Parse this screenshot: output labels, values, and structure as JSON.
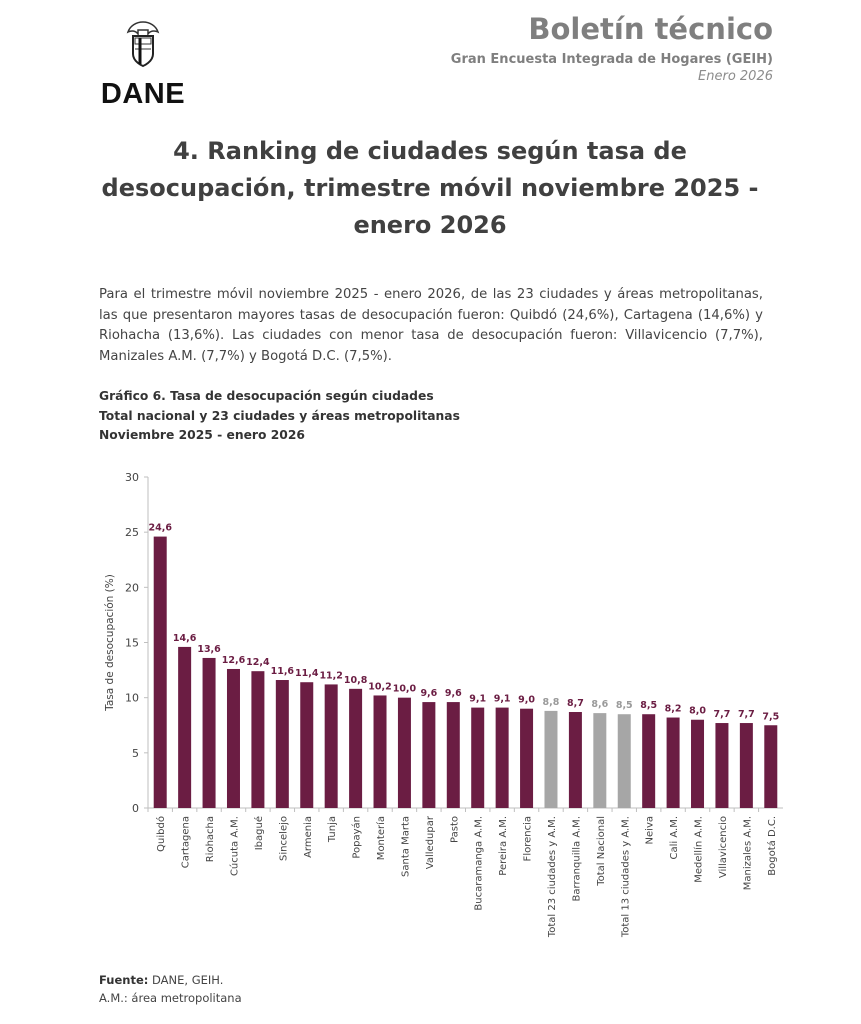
{
  "header": {
    "logo_text": "DANE",
    "title": "Boletín técnico",
    "subtitle": "Gran Encuesta Integrada de Hogares (GEIH)",
    "date": "Enero 2026"
  },
  "section_title": "4. Ranking de ciudades según tasa de desocupación, trimestre móvil noviembre 2025 - enero 2026",
  "paragraph": "Para el trimestre móvil noviembre 2025 - enero 2026, de las 23 ciudades y áreas metropolitanas, las que presentaron mayores tasas de desocupación fueron: Quibdó (24,6%), Cartagena (14,6%) y Riohacha (13,6%). Las ciudades con menor tasa de desocupación fueron: Villavicencio (7,7%), Manizales A.M. (7,7%) y Bogotá D.C. (7,5%).",
  "chart_caption": {
    "line1": "Gráfico 6. Tasa de desocupación según ciudades",
    "line2": "Total nacional y 23 ciudades y áreas metropolitanas",
    "line3": "Noviembre 2025 - enero 2026"
  },
  "chart_data": {
    "type": "bar",
    "title": "Gráfico 6. Tasa de desocupación según ciudades",
    "xlabel": "",
    "ylabel": "Tasa de desocupación (%)",
    "ylim": [
      0,
      30
    ],
    "yticks": [
      "0",
      "5",
      "10",
      "15",
      "20",
      "25",
      "30"
    ],
    "grid": false,
    "categories": [
      "Quibdó",
      "Cartagena",
      "Riohacha",
      "Cúcuta A.M.",
      "Ibagué",
      "Sincelejo",
      "Armenia",
      "Tunja",
      "Popayán",
      "Montería",
      "Santa Marta",
      "Valledupar",
      "Pasto",
      "Bucaramanga A.M.",
      "Pereira A.M.",
      "Florencia",
      "Total 23 ciudades y A.M.",
      "Barranquilla A.M.",
      "Total Nacional",
      "Total 13 ciudades y A.M.",
      "Neiva",
      "Cali A.M.",
      "Medellín A.M.",
      "Villavicencio",
      "Manizales A.M.",
      "Bogotá D.C."
    ],
    "values": [
      24.6,
      14.6,
      13.6,
      12.6,
      12.4,
      11.6,
      11.4,
      11.2,
      10.8,
      10.2,
      10.0,
      9.6,
      9.6,
      9.1,
      9.1,
      9.0,
      8.8,
      8.7,
      8.6,
      8.5,
      8.5,
      8.2,
      8.0,
      7.7,
      7.7,
      7.5
    ],
    "labels": [
      "24,6",
      "14,6",
      "13,6",
      "12,6",
      "12,4",
      "11,6",
      "11,4",
      "11,2",
      "10,8",
      "10,2",
      "10,0",
      "9,6",
      "9,6",
      "9,1",
      "9,1",
      "9,0",
      "8,8",
      "8,7",
      "8,6",
      "8,5",
      "8,5",
      "8,2",
      "8,0",
      "7,7",
      "7,7",
      "7,5"
    ],
    "highlight": [
      false,
      false,
      false,
      false,
      false,
      false,
      false,
      false,
      false,
      false,
      false,
      false,
      false,
      false,
      false,
      false,
      true,
      false,
      true,
      true,
      false,
      false,
      false,
      false,
      false,
      false
    ],
    "colors": {
      "city": "#6b1d43",
      "total": "#a6a6a6",
      "city_label": "#6b1d43",
      "total_label": "#9a9a9a"
    }
  },
  "footer": {
    "source_label": "Fuente:",
    "source_text": " DANE, GEIH.",
    "note": "A.M.: área metropolitana"
  }
}
